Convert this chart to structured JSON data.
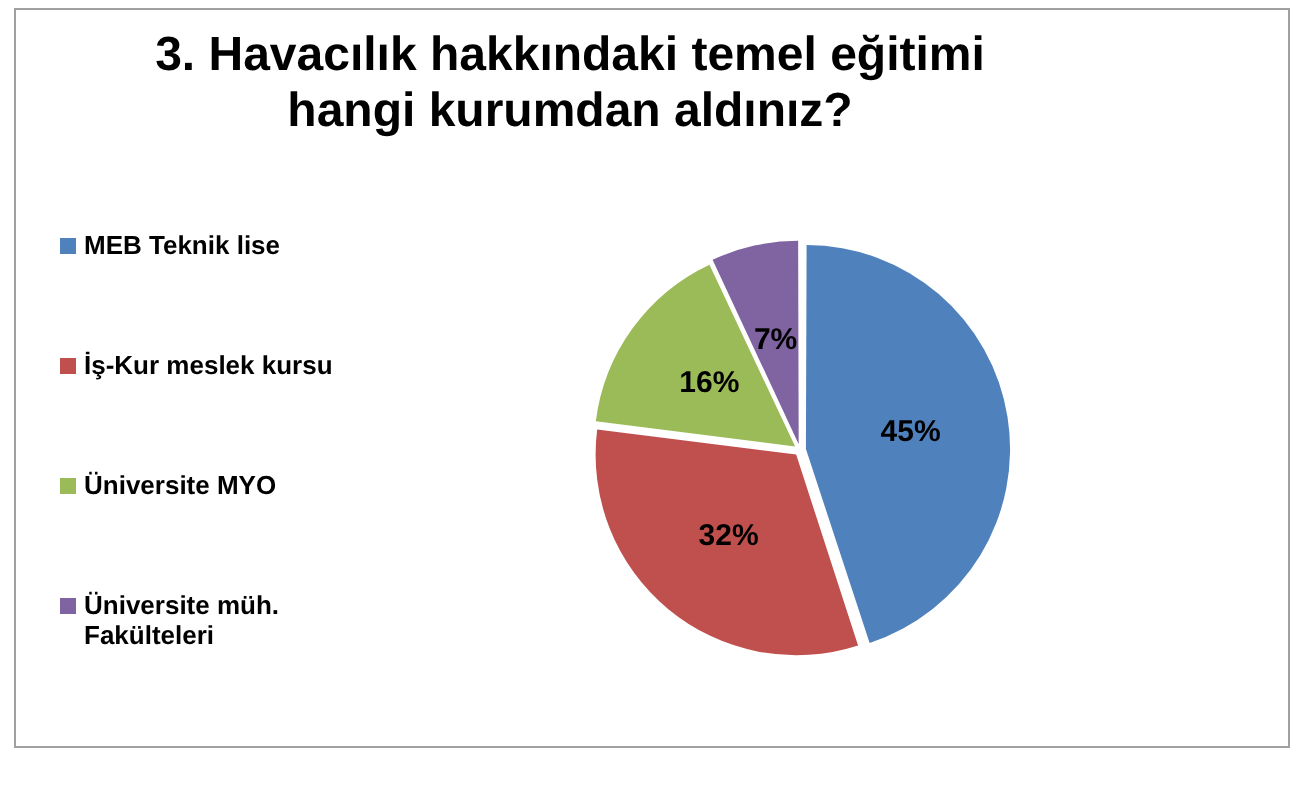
{
  "chart_data": {
    "type": "pie",
    "title": "3. Havacılık hakkındaki temel eğitimi hangi kurumdan aldınız?",
    "categories": [
      "MEB Teknik lise",
      "İş-Kur meslek kursu",
      "Üniversite MYO",
      "Üniversite müh. Fakülteleri"
    ],
    "values": [
      45,
      32,
      16,
      7
    ],
    "colors": [
      "#4f81bd",
      "#c0504d",
      "#9bbb59",
      "#8064a2"
    ],
    "value_labels": [
      "45%",
      "32%",
      "16%",
      "7%"
    ],
    "legend": "left"
  }
}
